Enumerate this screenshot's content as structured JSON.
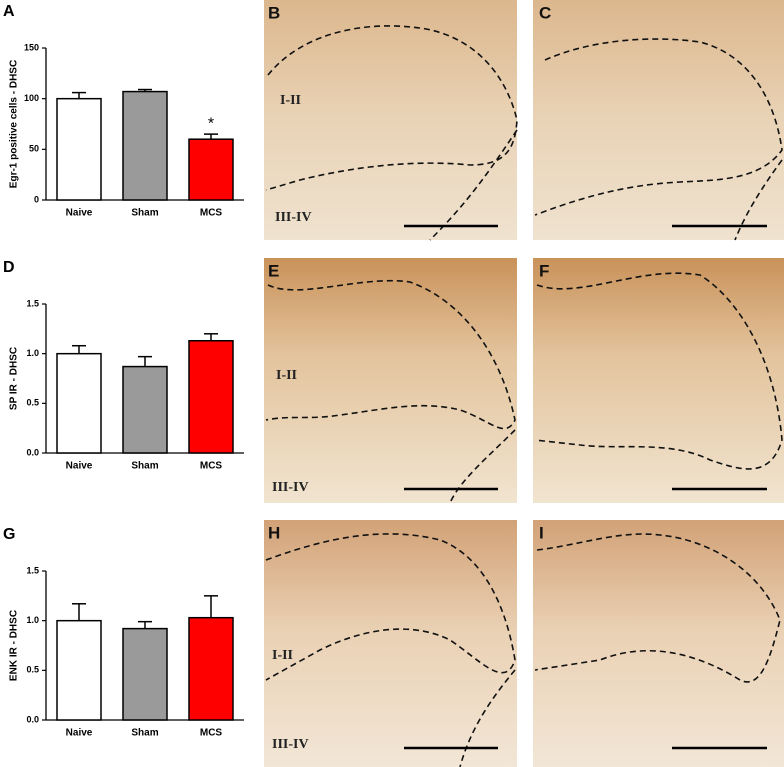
{
  "chart_data": [
    {
      "type": "bar",
      "panel_label": "A",
      "y_label": "Egr-1 positive cells - DHSC",
      "categories": [
        "Naive",
        "Sham",
        "MCS"
      ],
      "values": [
        100,
        107,
        60
      ],
      "errors": [
        6,
        2,
        5
      ],
      "colors": [
        "#ffffff",
        "#9a9a9a",
        "#ff0000"
      ],
      "annotation": "*",
      "ylim": [
        0,
        150
      ],
      "yticks": [
        0,
        50,
        100,
        150
      ]
    },
    {
      "type": "bar",
      "panel_label": "D",
      "y_label": "SP IR - DHSC",
      "categories": [
        "Naive",
        "Sham",
        "MCS"
      ],
      "values": [
        1.0,
        0.87,
        1.13
      ],
      "errors": [
        0.08,
        0.1,
        0.07
      ],
      "colors": [
        "#ffffff",
        "#9a9a9a",
        "#ff0000"
      ],
      "ylim": [
        0,
        1.5
      ],
      "yticks": [
        {
          "value": 0,
          "label": "0.0"
        },
        0.5,
        {
          "value": 1,
          "label": "1.0"
        },
        1.5
      ]
    },
    {
      "type": "bar",
      "panel_label": "G",
      "y_label": "ENK IR - DHSC",
      "categories": [
        "Naive",
        "Sham",
        "MCS"
      ],
      "values": [
        1.0,
        0.92,
        1.03
      ],
      "errors": [
        0.17,
        0.07,
        0.22
      ],
      "colors": [
        "#ffffff",
        "#9a9a9a",
        "#ff0000"
      ],
      "ylim": [
        0,
        1.5
      ],
      "yticks": [
        {
          "value": 0,
          "label": "0.0"
        },
        0.5,
        {
          "value": 1,
          "label": "1.0"
        },
        1.5
      ]
    }
  ],
  "images": [
    {
      "letter": "B",
      "upper_label": "I-II",
      "lower_label": "III-IV"
    },
    {
      "letter": "C"
    },
    {
      "letter": "E",
      "upper_label": "I-II",
      "lower_label": "III-IV"
    },
    {
      "letter": "F"
    },
    {
      "letter": "H",
      "upper_label": "I-II",
      "lower_label": "III-IV"
    },
    {
      "letter": "I"
    }
  ]
}
